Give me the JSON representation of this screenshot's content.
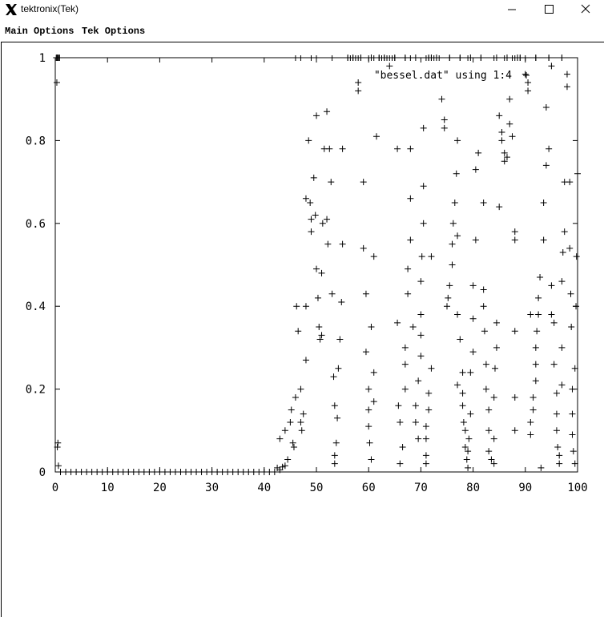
{
  "window": {
    "title": "tektronix(Tek)",
    "app_icon": "x-logo-icon",
    "controls": [
      "minimize-icon",
      "maximize-icon",
      "close-icon"
    ]
  },
  "menu": {
    "main_options": "Main Options",
    "tek_options": "Tek Options"
  },
  "chart_data": {
    "type": "scatter",
    "marker": "+",
    "xlim": [
      0,
      100
    ],
    "ylim": [
      0,
      1
    ],
    "x_ticks": [
      "0",
      "10",
      "20",
      "30",
      "40",
      "50",
      "60",
      "70",
      "80",
      "90",
      "100"
    ],
    "y_ticks": [
      "0",
      "0.2",
      "0.4",
      "0.6",
      "0.8",
      "1"
    ],
    "grid": false,
    "legend_position": "top-right",
    "series": [
      {
        "name": "\"bessel.dat\" using 1:4",
        "points": [
          [
            0.2,
            1
          ],
          [
            0.4,
            1
          ],
          [
            0.6,
            1
          ],
          [
            0.8,
            1
          ],
          [
            0.3,
            0.94
          ],
          [
            0.5,
            0.07
          ],
          [
            0.4,
            0.06
          ],
          [
            0.6,
            0.015
          ],
          [
            1,
            0
          ],
          [
            2,
            0
          ],
          [
            3,
            0
          ],
          [
            4,
            0
          ],
          [
            5,
            0
          ],
          [
            6,
            0
          ],
          [
            7,
            0
          ],
          [
            8,
            0
          ],
          [
            9,
            0
          ],
          [
            10,
            0
          ],
          [
            11,
            0
          ],
          [
            12,
            0
          ],
          [
            13,
            0
          ],
          [
            14,
            0
          ],
          [
            15,
            0
          ],
          [
            16,
            0
          ],
          [
            17,
            0
          ],
          [
            18,
            0
          ],
          [
            19,
            0
          ],
          [
            20,
            0
          ],
          [
            21,
            0
          ],
          [
            22,
            0
          ],
          [
            23,
            0
          ],
          [
            24,
            0
          ],
          [
            25,
            0
          ],
          [
            26,
            0
          ],
          [
            27,
            0
          ],
          [
            28,
            0
          ],
          [
            29,
            0
          ],
          [
            30,
            0
          ],
          [
            31,
            0
          ],
          [
            32,
            0
          ],
          [
            33,
            0
          ],
          [
            34,
            0
          ],
          [
            35,
            0
          ],
          [
            36,
            0
          ],
          [
            37,
            0
          ],
          [
            38,
            0
          ],
          [
            39,
            0
          ],
          [
            40,
            0
          ],
          [
            41,
            0
          ],
          [
            42,
            0
          ],
          [
            42.5,
            0.01
          ],
          [
            43,
            0.005
          ],
          [
            43.5,
            0.012
          ],
          [
            44,
            0.015
          ],
          [
            44.5,
            0.03
          ],
          [
            43,
            0.08
          ],
          [
            44,
            0.1
          ],
          [
            45,
            0.12
          ],
          [
            45.2,
            0.15
          ],
          [
            45.5,
            0.07
          ],
          [
            45.7,
            0.06
          ],
          [
            46,
            0.18
          ],
          [
            46.2,
            0.4
          ],
          [
            46.5,
            0.34
          ],
          [
            47,
            0.2
          ],
          [
            47,
            0.12
          ],
          [
            47.2,
            0.1
          ],
          [
            47.5,
            0.14
          ],
          [
            48,
            0.27
          ],
          [
            48,
            0.4
          ],
          [
            48,
            0.66
          ],
          [
            48.5,
            0.8
          ],
          [
            48.8,
            0.65
          ],
          [
            49,
            0.58
          ],
          [
            49,
            0.61
          ],
          [
            49.5,
            0.71
          ],
          [
            49.8,
            0.62
          ],
          [
            50,
            0.49
          ],
          [
            50,
            0.86
          ],
          [
            50.3,
            0.42
          ],
          [
            50.5,
            0.35
          ],
          [
            50.7,
            0.32
          ],
          [
            51,
            0.33
          ],
          [
            51,
            0.48
          ],
          [
            51.2,
            0.6
          ],
          [
            51.5,
            0.78
          ],
          [
            52,
            0.61
          ],
          [
            52,
            0.87
          ],
          [
            52.2,
            0.55
          ],
          [
            52.5,
            0.78
          ],
          [
            52.8,
            0.7
          ],
          [
            53,
            0.43
          ],
          [
            53.3,
            0.23
          ],
          [
            53.5,
            0.16
          ],
          [
            53.5,
            0.02
          ],
          [
            53.5,
            0.04
          ],
          [
            53.8,
            0.07
          ],
          [
            54,
            0.13
          ],
          [
            54.2,
            0.25
          ],
          [
            54.5,
            0.32
          ],
          [
            54.8,
            0.41
          ],
          [
            55,
            0.55
          ],
          [
            55,
            0.78
          ],
          [
            58,
            0.94
          ],
          [
            58,
            0.92
          ],
          [
            59,
            0.7
          ],
          [
            59,
            0.54
          ],
          [
            59.5,
            0.43
          ],
          [
            59.5,
            0.29
          ],
          [
            60,
            0.2
          ],
          [
            60,
            0.15
          ],
          [
            60,
            0.11
          ],
          [
            60.2,
            0.07
          ],
          [
            60.5,
            0.03
          ],
          [
            60.5,
            0.35
          ],
          [
            61,
            0.52
          ],
          [
            61.5,
            0.81
          ],
          [
            61,
            0.17
          ],
          [
            61,
            0.24
          ],
          [
            64,
            0.98
          ],
          [
            65.5,
            0.78
          ],
          [
            65.5,
            0.36
          ],
          [
            65.7,
            0.16
          ],
          [
            66,
            0.12
          ],
          [
            66,
            0.02
          ],
          [
            66.5,
            0.06
          ],
          [
            67,
            0.2
          ],
          [
            67,
            0.26
          ],
          [
            67,
            0.3
          ],
          [
            67.5,
            0.43
          ],
          [
            67.5,
            0.49
          ],
          [
            68,
            0.56
          ],
          [
            68,
            0.78
          ],
          [
            68,
            0.66
          ],
          [
            68.5,
            0.35
          ],
          [
            69,
            0.16
          ],
          [
            69,
            0.12
          ],
          [
            69.5,
            0.08
          ],
          [
            69.5,
            0.22
          ],
          [
            70,
            0.28
          ],
          [
            70,
            0.33
          ],
          [
            70,
            0.38
          ],
          [
            70,
            0.46
          ],
          [
            70.2,
            0.52
          ],
          [
            70.5,
            0.6
          ],
          [
            70.5,
            0.69
          ],
          [
            70.5,
            0.83
          ],
          [
            71,
            0.04
          ],
          [
            71,
            0.02
          ],
          [
            71,
            0.08
          ],
          [
            71,
            0.11
          ],
          [
            71.5,
            0.15
          ],
          [
            71.5,
            0.19
          ],
          [
            72,
            0.25
          ],
          [
            72,
            0.52
          ],
          [
            74,
            0.9
          ],
          [
            74.5,
            0.85
          ],
          [
            74.5,
            0.83
          ],
          [
            75,
            0.4
          ],
          [
            75.2,
            0.42
          ],
          [
            75.5,
            0.45
          ],
          [
            76,
            0.5
          ],
          [
            76,
            0.55
          ],
          [
            76.2,
            0.6
          ],
          [
            76.5,
            0.65
          ],
          [
            76.8,
            0.72
          ],
          [
            77,
            0.8
          ],
          [
            77,
            0.57
          ],
          [
            77,
            0.38
          ],
          [
            77,
            0.21
          ],
          [
            77.5,
            0.32
          ],
          [
            78,
            0.24
          ],
          [
            78,
            0.19
          ],
          [
            78,
            0.16
          ],
          [
            78.2,
            0.12
          ],
          [
            78.5,
            0.1
          ],
          [
            78.5,
            0.06
          ],
          [
            78.8,
            0.03
          ],
          [
            79,
            0.01
          ],
          [
            79,
            0.05
          ],
          [
            79.2,
            0.08
          ],
          [
            79.5,
            0.14
          ],
          [
            79.5,
            0.24
          ],
          [
            80,
            0.29
          ],
          [
            80,
            0.37
          ],
          [
            80,
            0.45
          ],
          [
            80.5,
            0.56
          ],
          [
            80.5,
            0.73
          ],
          [
            81,
            0.77
          ],
          [
            82,
            0.65
          ],
          [
            82,
            0.44
          ],
          [
            82,
            0.4
          ],
          [
            82.2,
            0.34
          ],
          [
            82.5,
            0.26
          ],
          [
            82.5,
            0.2
          ],
          [
            83,
            0.15
          ],
          [
            83,
            0.1
          ],
          [
            83,
            0.05
          ],
          [
            83.5,
            0.03
          ],
          [
            84,
            0.02
          ],
          [
            84,
            0.08
          ],
          [
            84,
            0.18
          ],
          [
            84.2,
            0.25
          ],
          [
            84.5,
            0.3
          ],
          [
            84.5,
            0.36
          ],
          [
            85,
            0.64
          ],
          [
            85,
            0.86
          ],
          [
            85.5,
            0.82
          ],
          [
            85.5,
            0.8
          ],
          [
            86,
            0.77
          ],
          [
            86,
            0.75
          ],
          [
            86.5,
            0.76
          ],
          [
            87,
            0.84
          ],
          [
            87,
            0.9
          ],
          [
            87.5,
            0.81
          ],
          [
            88,
            0.58
          ],
          [
            88,
            0.56
          ],
          [
            88,
            0.34
          ],
          [
            88,
            0.18
          ],
          [
            88,
            0.1
          ],
          [
            90,
            0.96
          ],
          [
            90.5,
            0.92
          ],
          [
            90.5,
            0.94
          ],
          [
            91,
            0.38
          ],
          [
            91,
            0.12
          ],
          [
            91,
            0.09
          ],
          [
            91.5,
            0.15
          ],
          [
            91.5,
            0.18
          ],
          [
            92,
            0.22
          ],
          [
            92,
            0.26
          ],
          [
            92,
            0.3
          ],
          [
            92.2,
            0.34
          ],
          [
            92.5,
            0.38
          ],
          [
            92.5,
            0.42
          ],
          [
            92.8,
            0.47
          ],
          [
            93,
            0.01
          ],
          [
            93.5,
            0.56
          ],
          [
            93.5,
            0.65
          ],
          [
            94,
            0.74
          ],
          [
            94,
            0.88
          ],
          [
            94.5,
            0.78
          ],
          [
            95,
            0.98
          ],
          [
            95,
            0.45
          ],
          [
            95,
            0.38
          ],
          [
            95.5,
            0.36
          ],
          [
            95.5,
            0.26
          ],
          [
            96,
            0.19
          ],
          [
            96,
            0.14
          ],
          [
            96,
            0.1
          ],
          [
            96.2,
            0.06
          ],
          [
            96.5,
            0.02
          ],
          [
            96.5,
            0.04
          ],
          [
            97,
            0.21
          ],
          [
            97,
            0.3
          ],
          [
            97,
            0.46
          ],
          [
            97.2,
            0.53
          ],
          [
            97.5,
            0.58
          ],
          [
            97.5,
            0.7
          ],
          [
            98,
            0.93
          ],
          [
            98,
            0.96
          ],
          [
            98.5,
            0.7
          ],
          [
            98.5,
            0.54
          ],
          [
            98.7,
            0.43
          ],
          [
            98.8,
            0.35
          ],
          [
            99,
            0.2
          ],
          [
            99,
            0.14
          ],
          [
            99,
            0.09
          ],
          [
            99.2,
            0.05
          ],
          [
            99.5,
            0.02
          ],
          [
            99.5,
            0.25
          ],
          [
            99.7,
            0.4
          ],
          [
            99.8,
            0.52
          ],
          [
            100,
            0.72
          ],
          [
            56,
            1
          ],
          [
            57,
            1
          ],
          [
            58.5,
            1
          ],
          [
            60.5,
            1
          ],
          [
            62,
            1
          ],
          [
            63,
            1
          ],
          [
            65,
            1
          ],
          [
            67,
            1
          ],
          [
            69,
            1
          ],
          [
            71.5,
            1
          ],
          [
            72,
            1
          ],
          [
            73,
            1
          ],
          [
            75.5,
            1
          ],
          [
            77.5,
            1
          ],
          [
            79.5,
            1
          ],
          [
            81.5,
            1
          ],
          [
            84.5,
            1
          ],
          [
            86.5,
            1
          ],
          [
            88.5,
            1
          ],
          [
            89,
            1
          ],
          [
            92,
            1
          ],
          [
            94.5,
            1
          ],
          [
            97,
            1
          ]
        ]
      }
    ],
    "rug_top_x": [
      0.2,
      0.4,
      0.6,
      0.8,
      46,
      47,
      49,
      50,
      53,
      56,
      56.5,
      57,
      57.5,
      58,
      58.5,
      60,
      61,
      62,
      62.5,
      63,
      63.5,
      64,
      64.5,
      65,
      67,
      68,
      71,
      71.5,
      72,
      72.5,
      73,
      73.5,
      75.5,
      77.5,
      79,
      81.5,
      84,
      86,
      87.5,
      88,
      88.5,
      89,
      90,
      92,
      94.5,
      97
    ]
  }
}
